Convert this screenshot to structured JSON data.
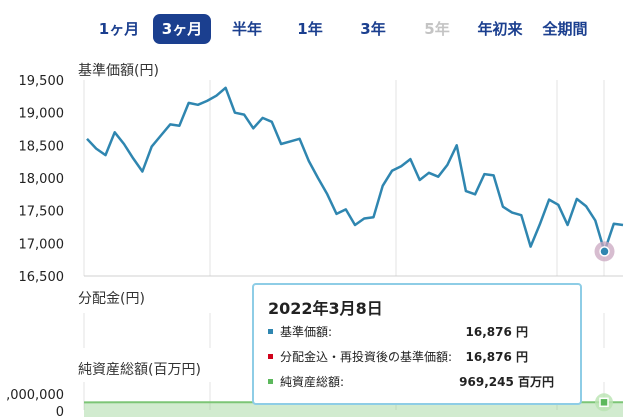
{
  "tabs": [
    {
      "label": "1ヶ月",
      "state": "normal"
    },
    {
      "label": "3ヶ月",
      "state": "active"
    },
    {
      "label": "半年",
      "state": "normal"
    },
    {
      "label": "1年",
      "state": "normal"
    },
    {
      "label": "3年",
      "state": "normal"
    },
    {
      "label": "5年",
      "state": "disabled"
    },
    {
      "label": "年初来",
      "state": "normal"
    },
    {
      "label": "全期間",
      "state": "normal"
    }
  ],
  "colors": {
    "accent": "#1b3f8f",
    "price_line": "#2f86b0",
    "assets_line": "#7cc576",
    "tooltip_border": "#8ecde6",
    "marker": "#c9a7c0",
    "dot_price": "#2f86b0",
    "dot_dividend": "#d0021b",
    "dot_assets": "#5cb85c"
  },
  "chart_data": [
    {
      "type": "line",
      "title": "基準価額(円)",
      "y_ticks": [
        "19,500",
        "19,000",
        "18,500",
        "18,000",
        "17,500",
        "17,000",
        "16,500"
      ],
      "ylim": [
        16500,
        19500
      ],
      "grid": true,
      "series": [
        {
          "values": [
            18600,
            18450,
            18350,
            18700,
            18520,
            18300,
            18100,
            18480,
            18650,
            18820,
            18800,
            19150,
            19120,
            19180,
            19260,
            19380,
            19000,
            18970,
            18760,
            18920,
            18860,
            18520,
            18560,
            18600,
            18260,
            18000,
            17750,
            17450,
            17520,
            17280,
            17380,
            17400,
            17880,
            18110,
            18180,
            18290,
            17970,
            18080,
            18020,
            18200,
            18500,
            17800,
            17750,
            18060,
            18040,
            17560,
            17470,
            17430,
            16950,
            17290,
            17670,
            17590,
            17280,
            17680,
            17570,
            17350,
            16876,
            17300,
            17280
          ]
        }
      ],
      "highlight_index": 56
    },
    {
      "type": "bar",
      "title": "分配金(円)",
      "series": []
    },
    {
      "type": "area",
      "title": "純資産総額(百万円)",
      "y_ticks": [
        ",000,000",
        "0"
      ],
      "series": [
        {
          "values": [
            965000,
            966000,
            967000,
            968000,
            969000,
            970000,
            970000,
            969500,
            969000,
            969245,
            969245,
            969245
          ]
        }
      ],
      "highlight_index": 11
    }
  ],
  "tooltip": {
    "date": "2022年3月8日",
    "rows": [
      {
        "label": "基準価額:",
        "value": "16,876 円",
        "color": "#2f86b0"
      },
      {
        "label": "分配金込・再投資後の基準価額:",
        "value": "16,876 円",
        "color": "#d0021b"
      },
      {
        "label": "純資産総額:",
        "value": "969,245 百万円",
        "color": "#5cb85c"
      }
    ]
  }
}
